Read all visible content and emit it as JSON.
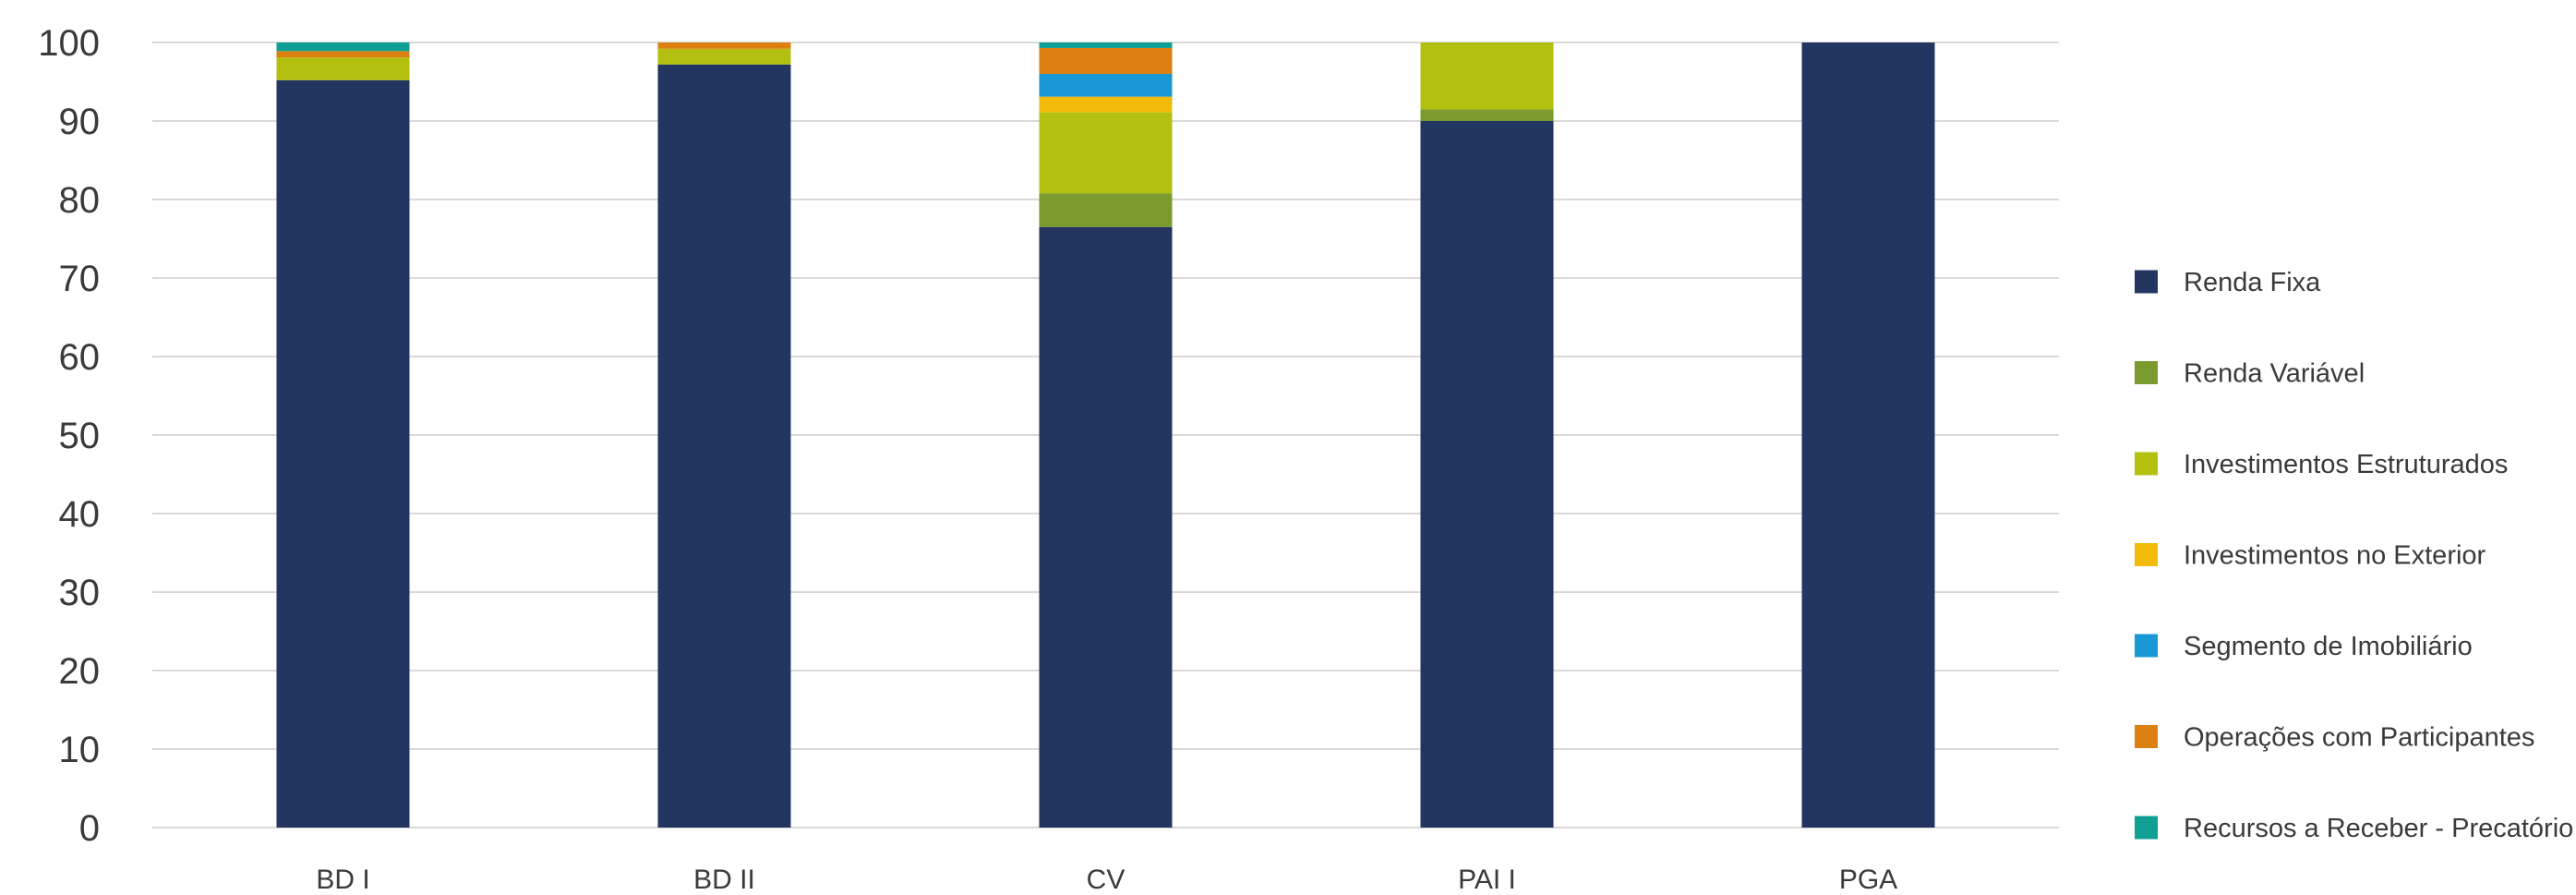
{
  "chart_data": {
    "type": "bar",
    "stacked": true,
    "title": "",
    "xlabel": "",
    "ylabel": "",
    "ylim": [
      0,
      100
    ],
    "yticks": [
      0,
      10,
      20,
      30,
      40,
      50,
      60,
      70,
      80,
      90,
      100
    ],
    "grid": true,
    "legend_position": "right",
    "categories": [
      "BD I",
      "BD II",
      "CV",
      "PAI I",
      "PGA"
    ],
    "series": [
      {
        "name": "Renda Fixa",
        "color": "#233561",
        "values": [
          95.2,
          97.2,
          76.5,
          90.0,
          100.0
        ]
      },
      {
        "name": "Renda Variável",
        "color": "#7a9a2e",
        "values": [
          0.0,
          0.0,
          4.3,
          1.5,
          0.0
        ]
      },
      {
        "name": "Investimentos Estruturados",
        "color": "#b4c010",
        "values": [
          2.9,
          2.0,
          10.3,
          8.5,
          0.0
        ]
      },
      {
        "name": "Investimentos no Exterior",
        "color": "#f2bb0a",
        "values": [
          0.0,
          0.0,
          2.0,
          0.0,
          0.0
        ]
      },
      {
        "name": "Segmento de Imobiliário",
        "color": "#1a98d5",
        "values": [
          0.0,
          0.0,
          2.9,
          0.0,
          0.0
        ]
      },
      {
        "name": "Operações com Participantes",
        "color": "#dd8012",
        "values": [
          0.8,
          0.8,
          3.3,
          0.0,
          0.0
        ]
      },
      {
        "name": "Recursos a Receber - Precatório",
        "color": "#0fa093",
        "values": [
          1.1,
          0.0,
          0.7,
          0.0,
          0.0
        ]
      }
    ]
  }
}
